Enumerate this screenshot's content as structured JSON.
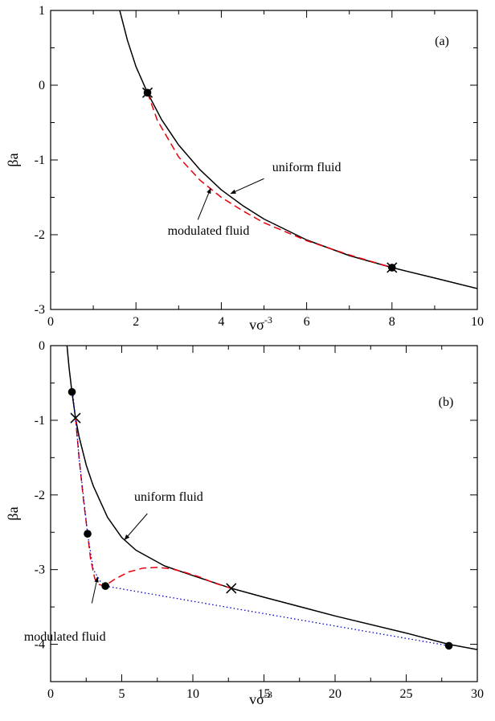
{
  "chart_data": [
    {
      "type": "line",
      "panel_label": "(a)",
      "xlabel": "vσ",
      "xlabel_sup": "-3",
      "ylabel": "βa",
      "xlim": [
        0,
        10
      ],
      "ylim": [
        -3,
        1
      ],
      "x_ticks": [
        0,
        2,
        4,
        6,
        8,
        10
      ],
      "x_tick_labels": [
        "0",
        "2",
        "4",
        "6",
        "8",
        "10"
      ],
      "y_ticks": [
        -3,
        -2,
        -1,
        0,
        1
      ],
      "y_tick_labels": [
        "-3",
        "-2",
        "-1",
        "0",
        "1"
      ],
      "series": [
        {
          "name": "uniform fluid",
          "style": "solid",
          "color": "#000000",
          "x": [
            1.62,
            1.8,
            2.0,
            2.27,
            2.6,
            3.0,
            3.5,
            4.0,
            4.5,
            5.0,
            6.0,
            7.0,
            8.0,
            9.0,
            10.0
          ],
          "y": [
            1.0,
            0.6,
            0.25,
            -0.1,
            -0.46,
            -0.8,
            -1.13,
            -1.4,
            -1.61,
            -1.79,
            -2.07,
            -2.28,
            -2.44,
            -2.58,
            -2.72
          ]
        },
        {
          "name": "modulated fluid",
          "style": "dashed",
          "color": "#e8000b",
          "x": [
            2.27,
            2.5,
            3.0,
            3.5,
            4.0,
            4.5,
            5.0,
            6.0,
            7.0,
            8.0
          ],
          "y": [
            -0.1,
            -0.47,
            -0.96,
            -1.27,
            -1.5,
            -1.68,
            -1.84,
            -2.08,
            -2.27,
            -2.44
          ]
        }
      ],
      "markers": [
        {
          "type": "dot",
          "x": 2.27,
          "y": -0.1
        },
        {
          "type": "cross",
          "x": 2.27,
          "y": -0.1
        },
        {
          "type": "dot",
          "x": 8.0,
          "y": -2.44
        },
        {
          "type": "cross",
          "x": 8.0,
          "y": -2.44
        }
      ],
      "annotations": [
        {
          "text": "uniform fluid",
          "text_x": 6.0,
          "text_y": -1.15,
          "arrow_from": [
            5.0,
            -1.25
          ],
          "arrow_to": [
            4.22,
            -1.45
          ]
        },
        {
          "text": "modulated fluid",
          "text_x": 3.7,
          "text_y": -2.0,
          "arrow_from": [
            3.45,
            -1.8
          ],
          "arrow_to": [
            3.75,
            -1.38
          ]
        }
      ]
    },
    {
      "type": "line",
      "panel_label": "(b)",
      "xlabel": "vσ",
      "xlabel_sup": "-3",
      "ylabel": "βa",
      "xlim": [
        0,
        30
      ],
      "ylim": [
        -4.5,
        0
      ],
      "x_ticks": [
        0,
        5,
        10,
        15,
        20,
        25,
        30
      ],
      "x_tick_labels": [
        "0",
        "5",
        "10",
        "15",
        "20",
        "25",
        "30"
      ],
      "y_ticks": [
        -4,
        -3,
        -2,
        -1,
        0
      ],
      "y_tick_labels": [
        "-4",
        "-3",
        "-2",
        "-1",
        "0"
      ],
      "series": [
        {
          "name": "uniform fluid",
          "style": "solid",
          "color": "#000000",
          "x": [
            1.15,
            1.3,
            1.5,
            1.75,
            2.0,
            2.5,
            3.0,
            4.0,
            5.0,
            6.0,
            8.0,
            10.0,
            12.7,
            15.0,
            20.0,
            25.0,
            28.0,
            30.0
          ],
          "y": [
            0.0,
            -0.3,
            -0.62,
            -0.97,
            -1.22,
            -1.6,
            -1.88,
            -2.3,
            -2.57,
            -2.74,
            -2.95,
            -3.08,
            -3.25,
            -3.37,
            -3.62,
            -3.85,
            -4.0,
            -4.07
          ]
        },
        {
          "name": "modulated fluid",
          "style": "dashed",
          "color": "#e8000b",
          "x": [
            1.75,
            2.0,
            2.3,
            2.6,
            2.8,
            3.1,
            3.4,
            3.8,
            4.5,
            5.5,
            6.5,
            7.5,
            8.5,
            9.5,
            10.5,
            11.5,
            12.7
          ],
          "y": [
            -0.97,
            -1.5,
            -2.05,
            -2.52,
            -2.85,
            -3.12,
            -3.2,
            -3.22,
            -3.13,
            -3.03,
            -2.98,
            -2.97,
            -2.99,
            -3.04,
            -3.1,
            -3.18,
            -3.25
          ]
        },
        {
          "name": "",
          "style": "dotted",
          "color": "#0000c8",
          "x": [
            1.55,
            1.75,
            2.0,
            2.3,
            2.6,
            3.0,
            3.5,
            3.85
          ],
          "y": [
            -0.62,
            -0.97,
            -1.5,
            -2.0,
            -2.52,
            -3.0,
            -3.16,
            -3.22
          ]
        },
        {
          "name": "",
          "style": "dotted",
          "color": "#0000c8",
          "x": [
            3.85,
            28.0
          ],
          "y": [
            -3.22,
            -4.02
          ]
        }
      ],
      "markers": [
        {
          "type": "dot",
          "x": 1.5,
          "y": -0.62
        },
        {
          "type": "cross",
          "x": 1.75,
          "y": -0.97
        },
        {
          "type": "dot",
          "x": 2.6,
          "y": -2.52
        },
        {
          "type": "dot",
          "x": 3.85,
          "y": -3.22
        },
        {
          "type": "cross",
          "x": 12.7,
          "y": -3.25
        },
        {
          "type": "dot",
          "x": 28.0,
          "y": -4.02
        }
      ],
      "annotations": [
        {
          "text": "uniform fluid",
          "text_x": 8.3,
          "text_y": -2.08,
          "arrow_from": [
            6.8,
            -2.25
          ],
          "arrow_to": [
            5.2,
            -2.6
          ]
        },
        {
          "text": "modulated fluid",
          "text_x": 1.0,
          "text_y": -3.95,
          "arrow_from": [
            2.9,
            -3.45
          ],
          "arrow_to": [
            3.3,
            -3.1
          ]
        }
      ]
    }
  ]
}
